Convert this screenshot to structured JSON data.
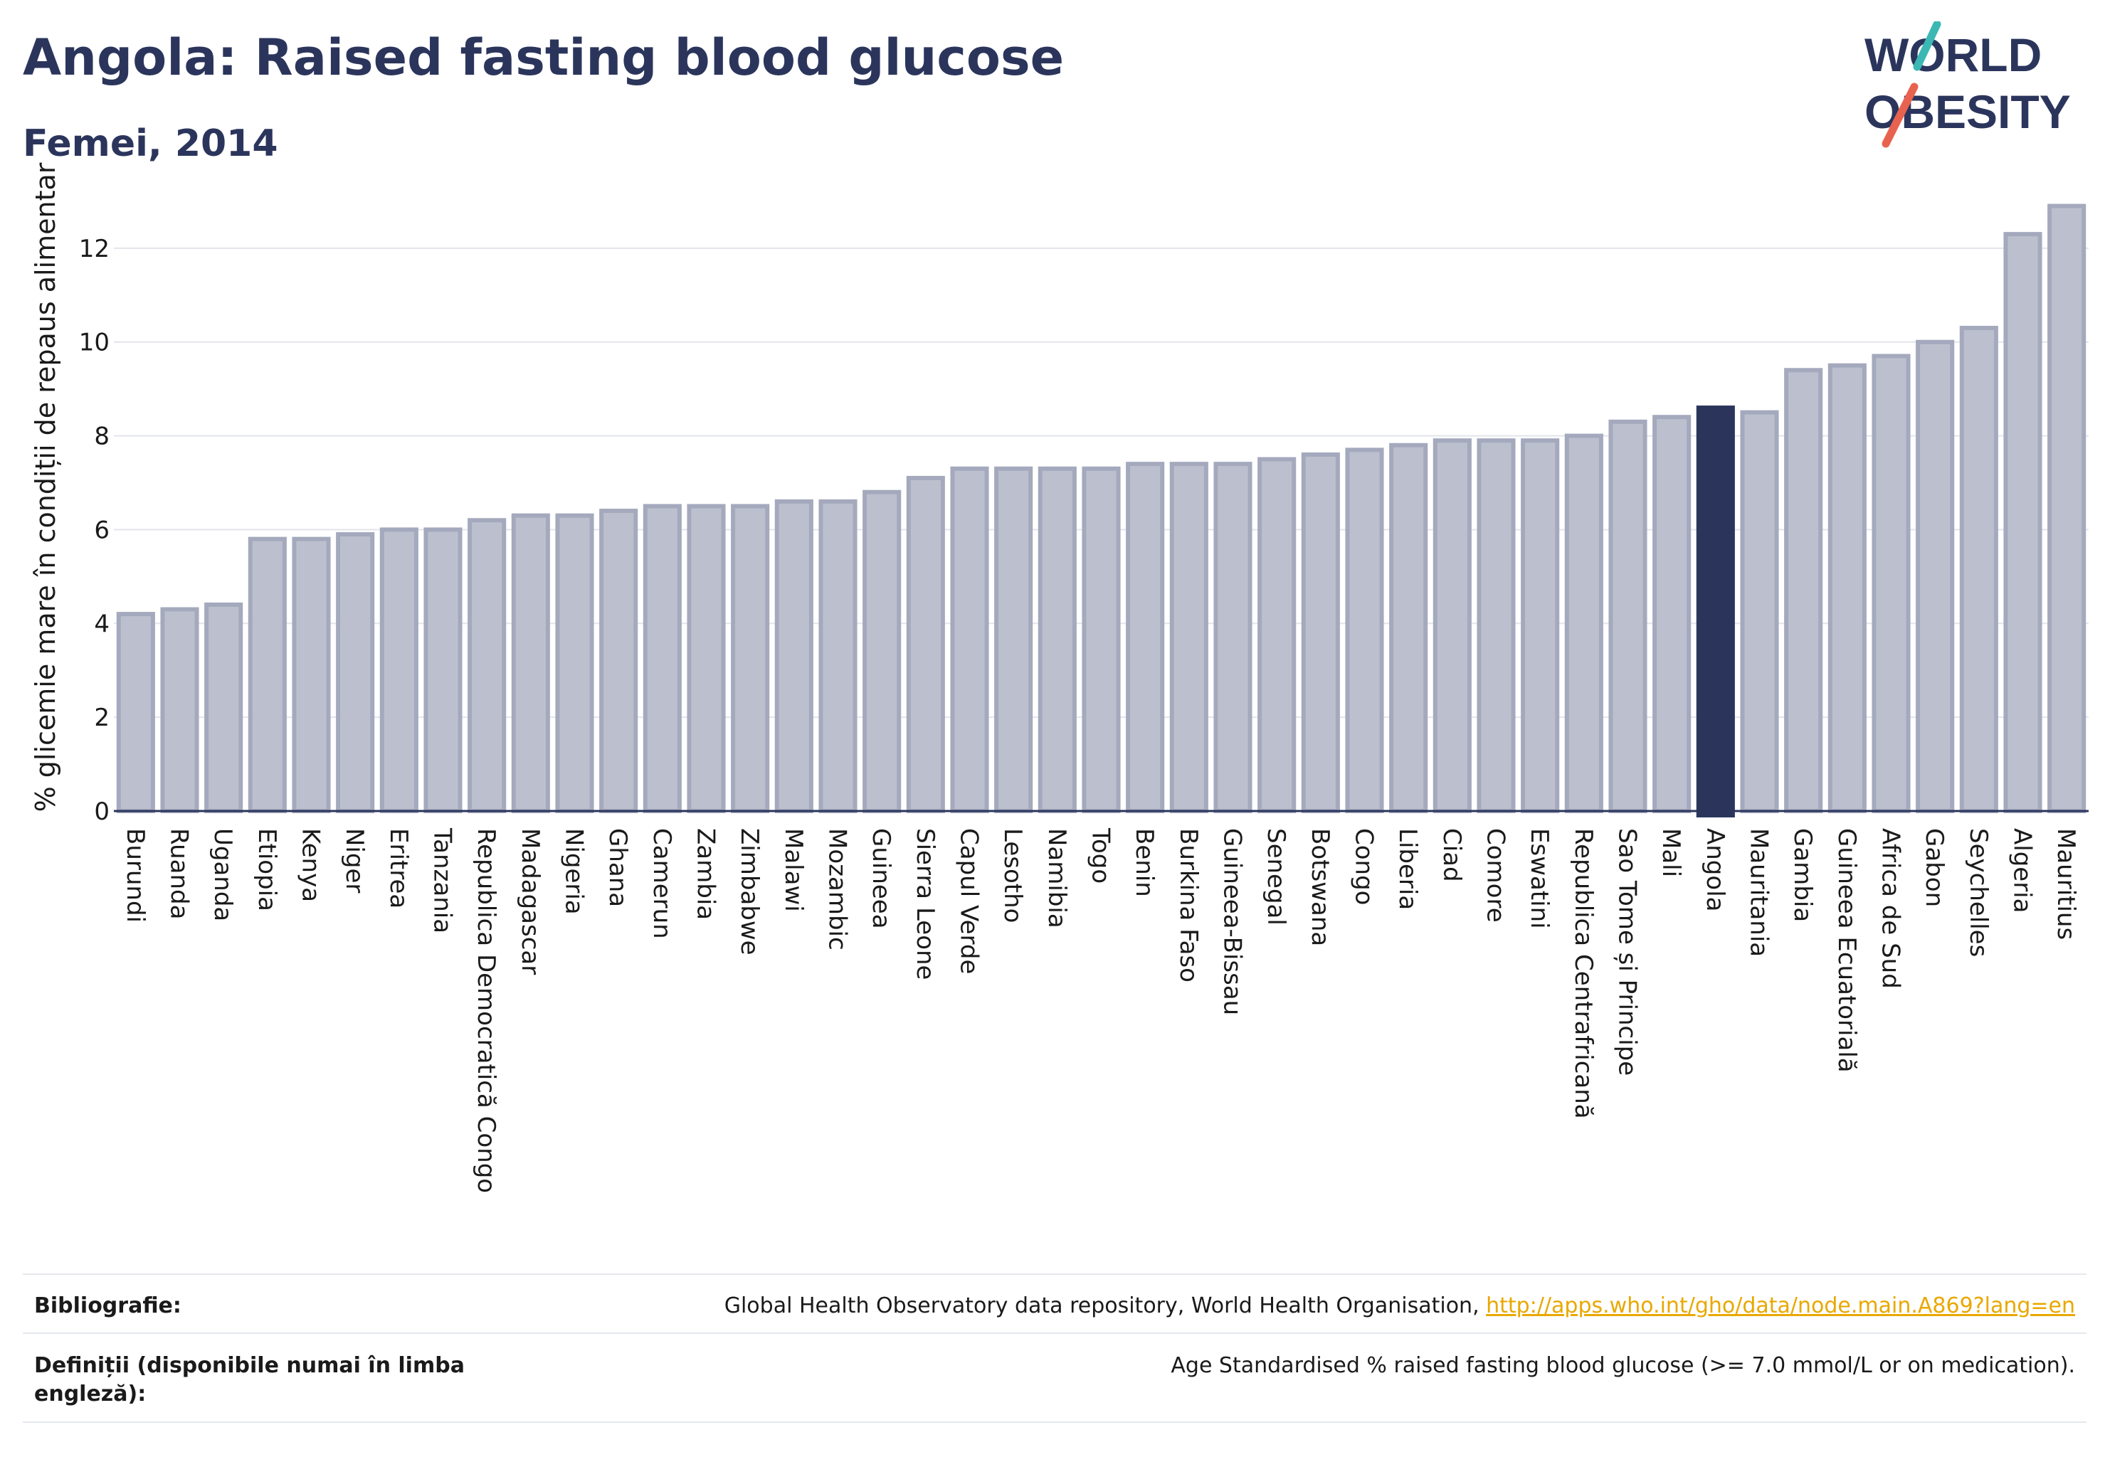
{
  "header": {
    "title": "Angola: Raised fasting blood glucose",
    "subtitle": "Femei, 2014"
  },
  "logo": {
    "line1": "WORLD",
    "line2": "OBESITY",
    "accent_teal": "#3bb8b4",
    "accent_red": "#e8634f"
  },
  "chart_data": {
    "type": "bar",
    "ylabel": "% glicemie mare în condiții de repaus alimentar",
    "ylim": [
      0,
      13.5
    ],
    "yticks": [
      0,
      2,
      4,
      6,
      8,
      10,
      12
    ],
    "highlight": "Angola",
    "highlight_color": "#2b355c",
    "bar_color": "#bcc0ce",
    "bar_edge_color": "#a4a9bd",
    "grid": true,
    "categories": [
      "Burundi",
      "Ruanda",
      "Uganda",
      "Etiopia",
      "Kenya",
      "Niger",
      "Eritrea",
      "Tanzania",
      "Republica Democratică Congo",
      "Madagascar",
      "Nigeria",
      "Ghana",
      "Camerun",
      "Zambia",
      "Zimbabwe",
      "Malawi",
      "Mozambic",
      "Guineea",
      "Sierra Leone",
      "Capul Verde",
      "Lesotho",
      "Namibia",
      "Togo",
      "Benin",
      "Burkina Faso",
      "Guineea-Bissau",
      "Senegal",
      "Botswana",
      "Congo",
      "Liberia",
      "Ciad",
      "Comore",
      "Eswatini",
      "Republica Centrafricană",
      "Sao Tome și Principe",
      "Mali",
      "Angola",
      "Mauritania",
      "Gambia",
      "Guineea Ecuatorială",
      "Africa de Sud",
      "Gabon",
      "Seychelles",
      "Algeria",
      "Mauritius"
    ],
    "values": [
      4.2,
      4.3,
      4.4,
      5.8,
      5.8,
      5.9,
      6.0,
      6.0,
      6.2,
      6.3,
      6.3,
      6.4,
      6.5,
      6.5,
      6.5,
      6.6,
      6.6,
      6.8,
      7.1,
      7.3,
      7.3,
      7.3,
      7.3,
      7.4,
      7.4,
      7.4,
      7.5,
      7.6,
      7.7,
      7.8,
      7.9,
      7.9,
      7.9,
      8.0,
      8.3,
      8.4,
      8.6,
      8.5,
      9.4,
      9.5,
      9.7,
      10.0,
      10.3,
      12.3,
      12.9
    ]
  },
  "footer": {
    "bibliography_label": "Bibliografie:",
    "bibliography_text": "Global Health Observatory data repository, World Health Organisation, ",
    "bibliography_link": "http://apps.who.int/gho/data/node.main.A869?lang=en",
    "definitions_label": "Definiții (disponibile numai în limba engleză):",
    "definitions_text": "Age Standardised % raised fasting blood glucose (>= 7.0 mmol/L or on medication)."
  }
}
